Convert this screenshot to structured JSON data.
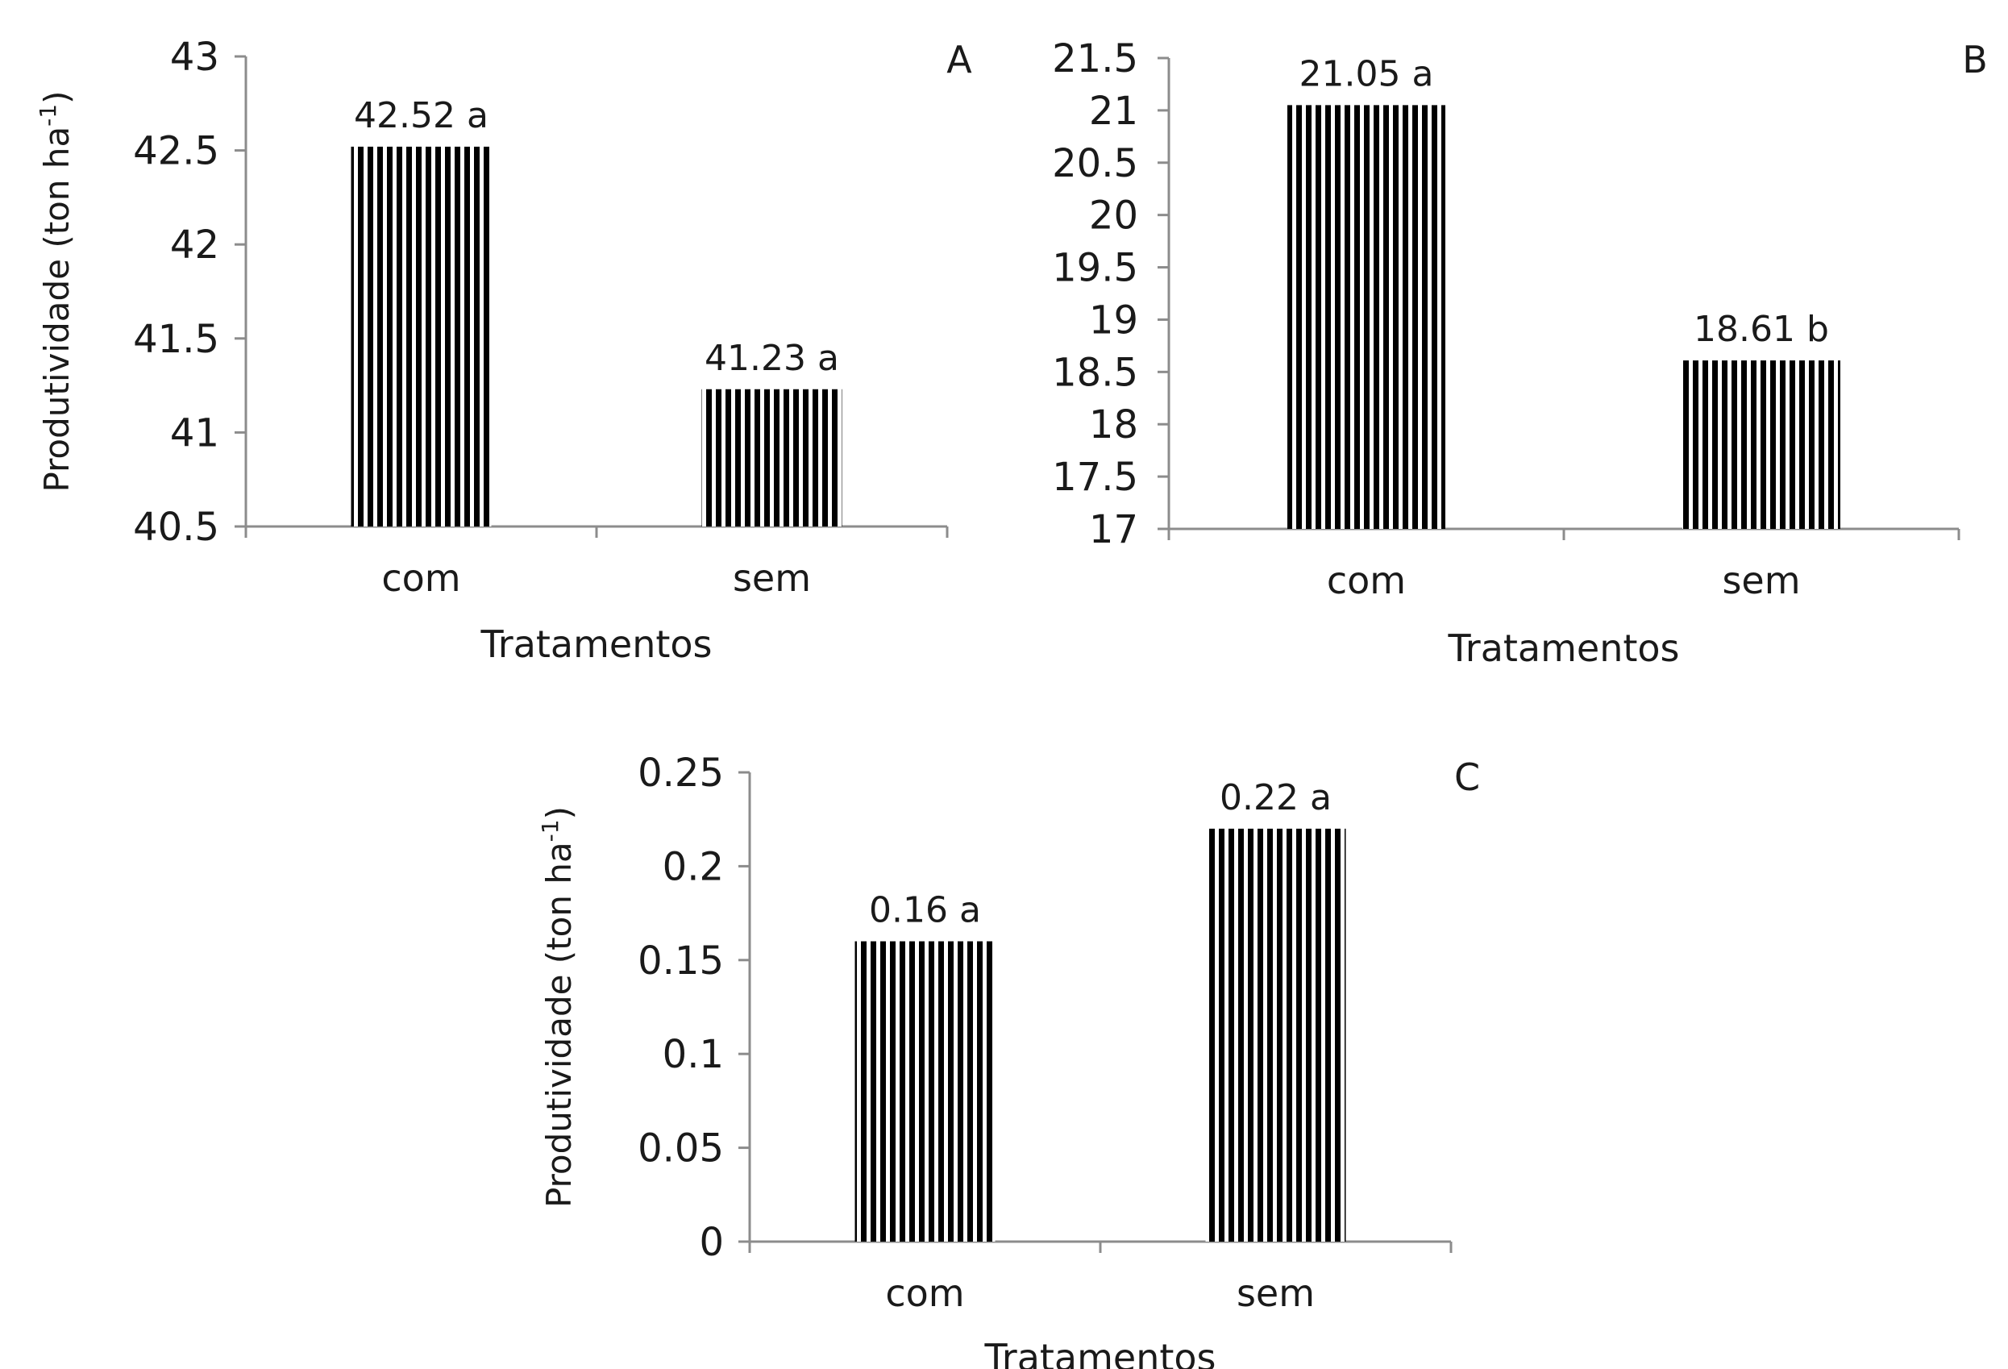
{
  "chart_data": [
    {
      "type": "bar",
      "panel_label": "A",
      "categories": [
        "com",
        "sem"
      ],
      "values": [
        42.52,
        41.23
      ],
      "data_labels": [
        "42.52 a",
        "41.23 a"
      ],
      "xlabel": "Tratamentos",
      "ylabel": "Produtividade (ton ha",
      "ylabel_superscript": "-1",
      "ylabel_close": ")",
      "ylim": [
        40.5,
        43
      ],
      "yticks": [
        "40.5",
        "41",
        "41.5",
        "42",
        "42.5",
        "43"
      ],
      "grid": false,
      "bar_fill": "vertical-stripes-black"
    },
    {
      "type": "bar",
      "panel_label": "B",
      "categories": [
        "com",
        "sem"
      ],
      "values": [
        21.05,
        18.61
      ],
      "data_labels": [
        "21.05 a",
        "18.61 b"
      ],
      "xlabel": "Tratamentos",
      "ylabel": "",
      "ylim": [
        17,
        21.5
      ],
      "yticks": [
        "17",
        "17.5",
        "18",
        "18.5",
        "19",
        "19.5",
        "20",
        "20.5",
        "21",
        "21.5"
      ],
      "grid": false,
      "bar_fill": "vertical-stripes-black"
    },
    {
      "type": "bar",
      "panel_label": "C",
      "categories": [
        "com",
        "sem"
      ],
      "values": [
        0.16,
        0.22
      ],
      "data_labels": [
        "0.16 a",
        "0.22 a"
      ],
      "xlabel": "Tratamentos",
      "ylabel": "Produtividade (ton ha",
      "ylabel_superscript": "-1",
      "ylabel_close": ")",
      "ylim": [
        0,
        0.25
      ],
      "yticks": [
        "0",
        "0.05",
        "0.1",
        "0.15",
        "0.2",
        "0.25"
      ],
      "grid": false,
      "bar_fill": "vertical-stripes-black"
    }
  ],
  "colors": {
    "bar_stripe": "#000000",
    "background": "#ffffff",
    "axis": "#8c8c8c"
  }
}
